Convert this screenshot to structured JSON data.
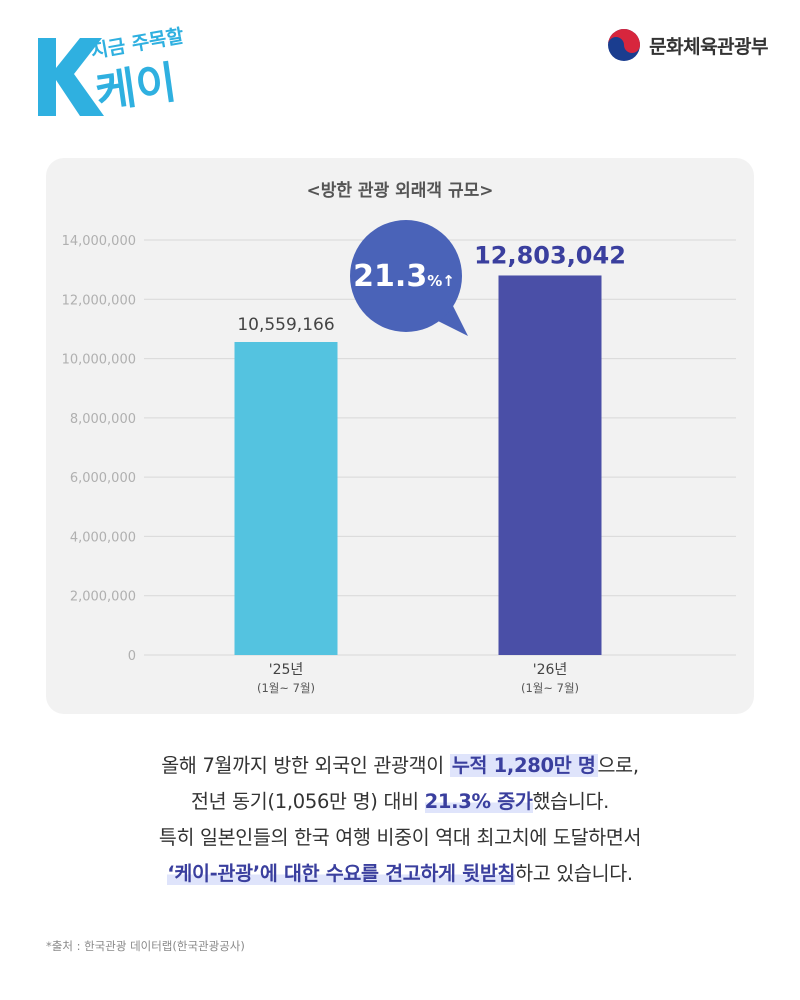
{
  "logo": {
    "line1": "지금 주목할",
    "line2": "케이"
  },
  "ministry": {
    "name": "문화체육관광부"
  },
  "chart_data": {
    "type": "bar",
    "title": "<방한 관광 외래객 규모>",
    "categories": [
      "'25년",
      "'26년"
    ],
    "category_sub": [
      "(1월~ 7월)",
      "(1월~ 7월)"
    ],
    "values": [
      10559166,
      12803042
    ],
    "value_labels": [
      "10,559,166",
      "12,803,042"
    ],
    "colors": [
      "#54c3e0",
      "#4a4fa7"
    ],
    "ylim": [
      0,
      14000000
    ],
    "yticks": [
      0,
      2000000,
      4000000,
      6000000,
      8000000,
      10000000,
      12000000,
      14000000
    ],
    "ytick_labels": [
      "0",
      "2,000,000",
      "4,000,000",
      "6,000,000",
      "8,000,000",
      "10,000,000",
      "12,000,000",
      "14,000,000"
    ],
    "grid": true,
    "annotation": {
      "value": "21.3",
      "suffix": "%↑",
      "color": "#4a63b8"
    }
  },
  "body": {
    "l1_pre": "올해 7월까지 방한 외국인 관광객이 ",
    "l1_hl": "누적 1,280만 명",
    "l1_post": "으로,",
    "l2_pre": "전년 동기(1,056만 명) 대비 ",
    "l2_hl": "21.3% 증가",
    "l2_post": "했습니다.",
    "l3": "특히 일본인들의 한국 여행 비중이 역대 최고치에 도달하면서",
    "l4_hl": "‘케이-관광’에 대한 수요를 견고하게 뒷받침",
    "l4_post": "하고 있습니다."
  },
  "source": "*출처 : 한국관광 데이터랩(한국관광공사)"
}
